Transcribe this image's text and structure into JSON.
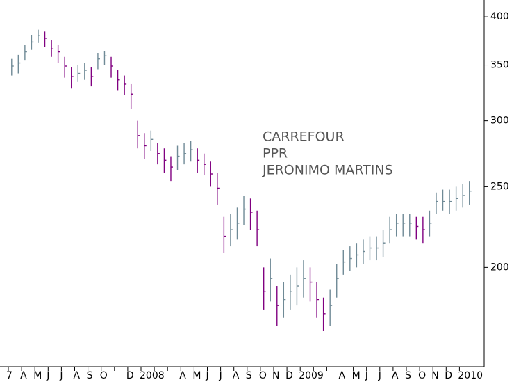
{
  "chart_data": {
    "type": "hlc",
    "annotations": [
      "CARREFOUR",
      "PPR",
      "JERONIMO MARTINS"
    ],
    "categories": [
      "7",
      null,
      "A",
      null,
      "M",
      null,
      "J",
      null,
      "J",
      null,
      "A",
      null,
      "S",
      null,
      "O",
      null,
      null,
      null,
      "D",
      null,
      "2008",
      null,
      null,
      null,
      null,
      null,
      "A",
      null,
      "M",
      null,
      "J",
      null,
      "J",
      null,
      "A",
      null,
      "S",
      null,
      "O",
      null,
      "N",
      null,
      "D",
      null,
      "2009",
      null,
      null,
      null,
      null,
      null,
      "A",
      null,
      "M",
      null,
      "J",
      null,
      "J",
      null,
      "A",
      null,
      "S",
      null,
      "O",
      null,
      "N",
      null,
      "D",
      null,
      "2010",
      null
    ],
    "high": [
      356,
      360,
      370,
      380,
      386,
      384,
      375,
      370,
      358,
      348,
      350,
      352,
      348,
      362,
      364,
      358,
      345,
      340,
      332,
      300,
      290,
      292,
      282,
      278,
      272,
      280,
      282,
      284,
      278,
      274,
      268,
      260,
      230,
      232,
      236,
      244,
      242,
      234,
      200,
      205,
      190,
      192,
      196,
      200,
      204,
      200,
      192,
      184,
      188,
      202,
      210,
      212,
      214,
      216,
      218,
      218,
      222,
      230,
      232,
      232,
      232,
      230,
      230,
      234,
      246,
      248,
      248,
      250,
      252,
      254
    ],
    "low": [
      340,
      342,
      355,
      365,
      372,
      368,
      358,
      352,
      338,
      328,
      334,
      336,
      330,
      346,
      350,
      338,
      326,
      322,
      310,
      278,
      270,
      276,
      266,
      260,
      254,
      262,
      266,
      268,
      260,
      258,
      250,
      238,
      208,
      212,
      216,
      225,
      222,
      212,
      178,
      182,
      170,
      174,
      178,
      180,
      184,
      182,
      174,
      168,
      170,
      184,
      196,
      198,
      200,
      202,
      204,
      204,
      206,
      214,
      218,
      218,
      218,
      216,
      214,
      218,
      232,
      234,
      232,
      234,
      236,
      238
    ],
    "close": [
      349,
      352,
      363,
      373,
      380,
      377,
      366,
      363,
      349,
      339,
      342,
      345,
      339,
      356,
      359,
      349,
      336,
      332,
      323,
      288,
      280,
      285,
      274,
      269,
      264,
      272,
      274,
      277,
      269,
      266,
      259,
      249,
      218,
      222,
      226,
      235,
      233,
      222,
      187,
      194,
      180,
      183,
      187,
      190,
      194,
      192,
      183,
      176,
      180,
      194,
      203,
      205,
      207,
      209,
      211,
      211,
      214,
      222,
      226,
      226,
      226,
      224,
      222,
      226,
      240,
      240,
      240,
      242,
      244,
      247
    ],
    "up_color": "#6f8a96",
    "down_color": "#800080",
    "log_scale": true,
    "ylim": [
      152,
      419
    ],
    "yticks": [
      200,
      250,
      300,
      350,
      400
    ]
  }
}
